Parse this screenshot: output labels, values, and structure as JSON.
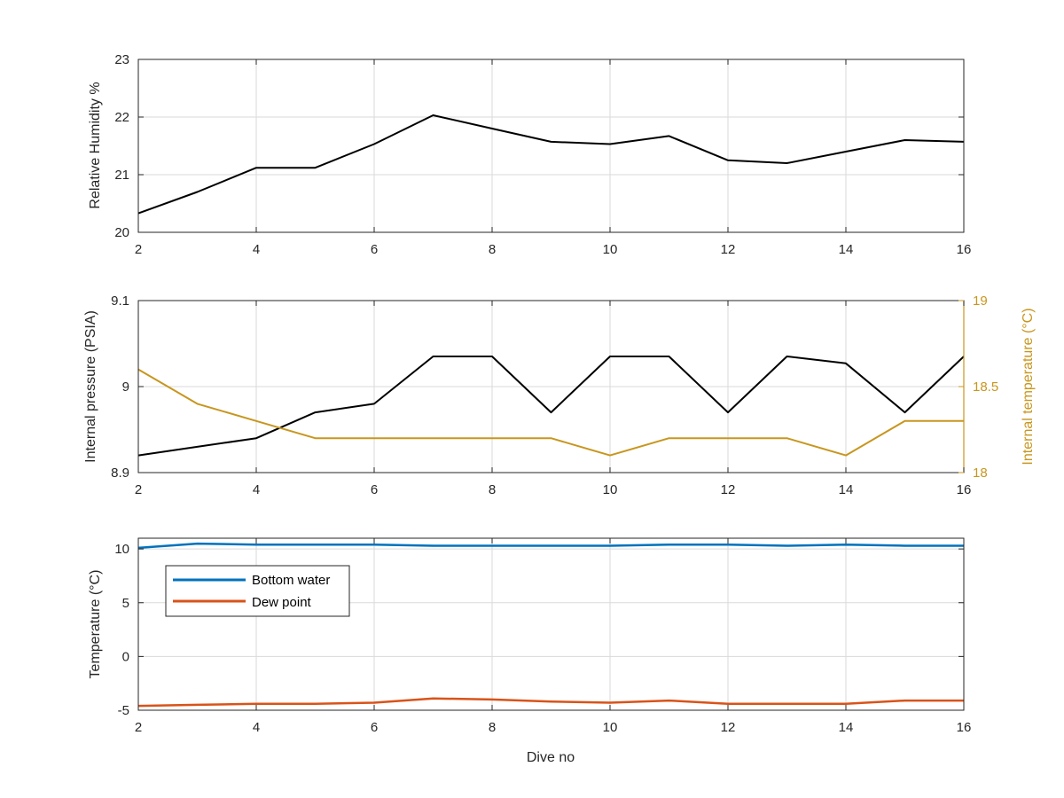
{
  "colors": {
    "humidity": "#000000",
    "pressure": "#000000",
    "internal_temperature": "#C8961E",
    "bottom_water": "#0072BD",
    "dew_point": "#D95319",
    "grid": "#DADADA",
    "axis": "#262626"
  },
  "chart_data": [
    {
      "type": "line",
      "xlabel": "",
      "ylabel": "Relative Humidity %",
      "xlim": [
        2,
        16
      ],
      "ylim": [
        20,
        23
      ],
      "xticks": [
        2,
        4,
        6,
        8,
        10,
        12,
        14,
        16
      ],
      "yticks": [
        20,
        21,
        22,
        23
      ],
      "grid": true,
      "series": [
        {
          "x": [
            2,
            3,
            4,
            5,
            6,
            7,
            8,
            9,
            10,
            11,
            12,
            13,
            14,
            15,
            16
          ],
          "values": [
            20.33,
            20.7,
            21.12,
            21.12,
            21.53,
            22.03,
            21.8,
            21.57,
            21.53,
            21.67,
            21.25,
            21.2,
            21.4,
            21.6,
            21.57
          ]
        }
      ]
    },
    {
      "type": "line",
      "xlabel": "",
      "ylabel": "Internal pressure (PSIA)",
      "y2label": "Internal temperature (°C)",
      "xlim": [
        2,
        16
      ],
      "ylim": [
        8.9,
        9.1
      ],
      "y2lim": [
        18,
        19
      ],
      "xticks": [
        2,
        4,
        6,
        8,
        10,
        12,
        14,
        16
      ],
      "yticks": [
        8.9,
        9,
        9.1
      ],
      "y2ticks": [
        18,
        18.5,
        19
      ],
      "grid": true,
      "series": [
        {
          "axis": "left",
          "x": [
            2,
            3,
            4,
            5,
            6,
            7,
            8,
            9,
            10,
            11,
            12,
            13,
            14,
            15,
            16
          ],
          "values": [
            8.92,
            8.93,
            8.94,
            8.97,
            8.98,
            9.035,
            9.035,
            8.97,
            9.035,
            9.035,
            8.97,
            9.035,
            9.027,
            8.97,
            9.035
          ]
        },
        {
          "axis": "right",
          "x": [
            2,
            3,
            4,
            5,
            6,
            7,
            8,
            9,
            10,
            11,
            12,
            13,
            14,
            15,
            16
          ],
          "values": [
            18.6,
            18.4,
            18.3,
            18.2,
            18.2,
            18.2,
            18.2,
            18.2,
            18.1,
            18.2,
            18.2,
            18.2,
            18.1,
            18.3,
            18.3
          ]
        }
      ]
    },
    {
      "type": "line",
      "xlabel": "Dive no",
      "ylabel": "Temperature (°C)",
      "xlim": [
        2,
        16
      ],
      "ylim": [
        -5,
        11
      ],
      "xticks": [
        2,
        4,
        6,
        8,
        10,
        12,
        14,
        16
      ],
      "yticks": [
        -5,
        0,
        5,
        10
      ],
      "grid": true,
      "legend": "top-left",
      "series": [
        {
          "name": "Bottom water",
          "x": [
            2,
            3,
            4,
            5,
            6,
            7,
            8,
            9,
            10,
            11,
            12,
            13,
            14,
            15,
            16
          ],
          "values": [
            10.1,
            10.5,
            10.4,
            10.4,
            10.4,
            10.3,
            10.3,
            10.3,
            10.3,
            10.4,
            10.4,
            10.3,
            10.4,
            10.3,
            10.3
          ]
        },
        {
          "name": "Dew point",
          "x": [
            2,
            3,
            4,
            5,
            6,
            7,
            8,
            9,
            10,
            11,
            12,
            13,
            14,
            15,
            16
          ],
          "values": [
            -4.6,
            -4.5,
            -4.4,
            -4.4,
            -4.3,
            -3.9,
            -4.0,
            -4.2,
            -4.3,
            -4.1,
            -4.4,
            -4.4,
            -4.4,
            -4.1,
            -4.1
          ]
        }
      ]
    }
  ]
}
